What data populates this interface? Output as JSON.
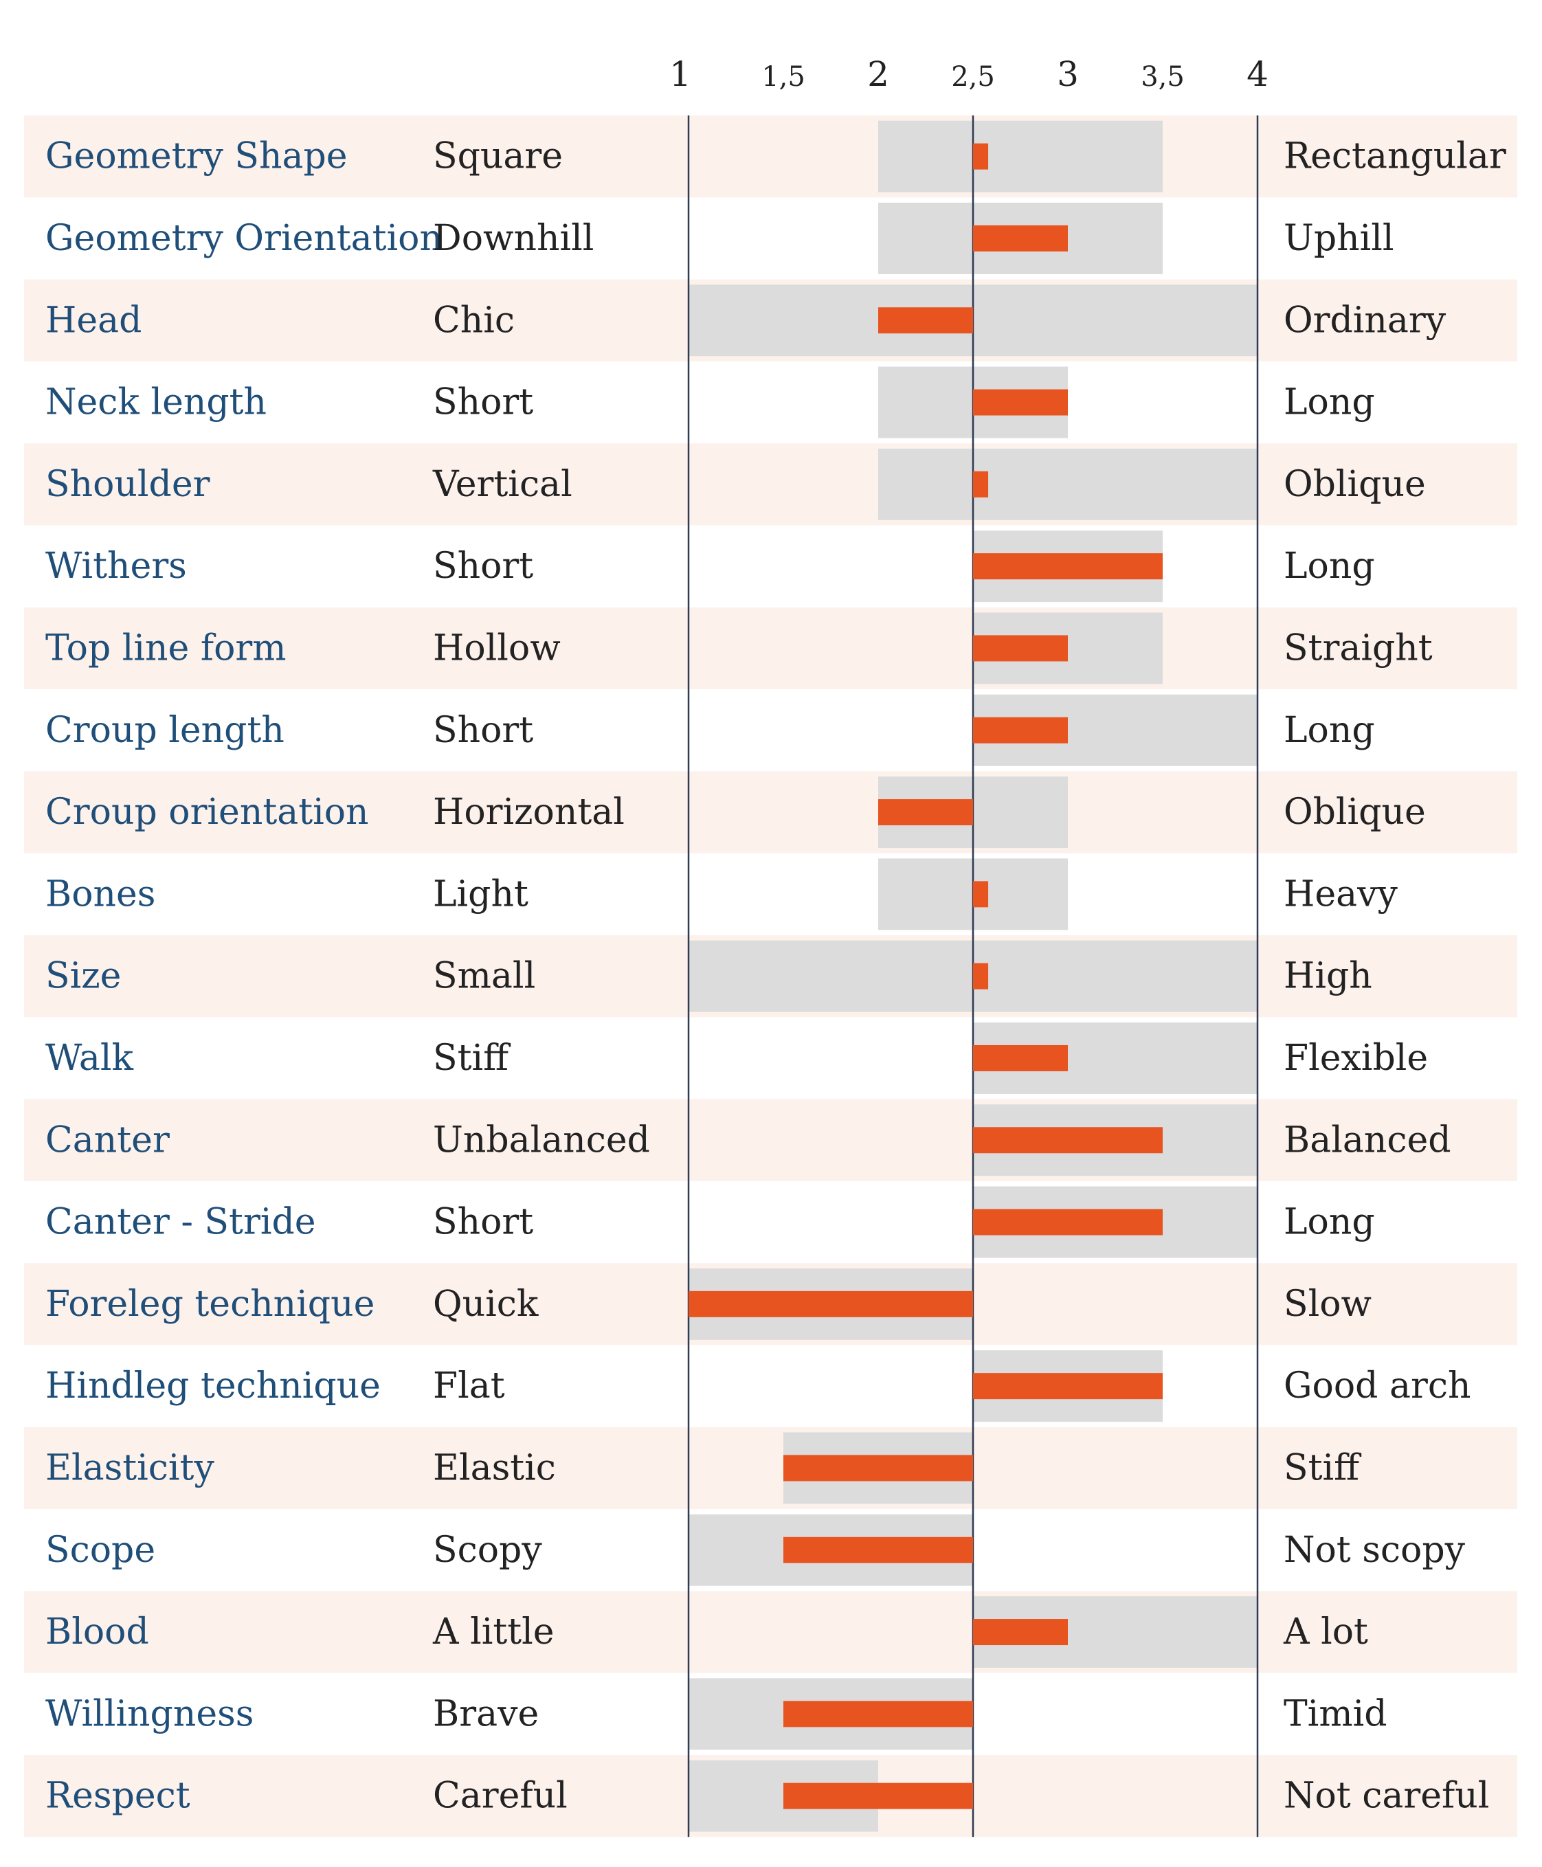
{
  "chart_data": {
    "type": "bar",
    "subtype": "diverging-range-profile",
    "baseline": 2.5,
    "xlim": [
      1,
      4
    ],
    "ticks": [
      {
        "value": 1,
        "label": "1"
      },
      {
        "value": 1.5,
        "label": "1,5"
      },
      {
        "value": 2,
        "label": "2"
      },
      {
        "value": 2.5,
        "label": "2,5"
      },
      {
        "value": 3,
        "label": "3"
      },
      {
        "value": 3.5,
        "label": "3,5"
      },
      {
        "value": 4,
        "label": "4"
      }
    ],
    "rows": [
      {
        "trait": "Geometry Shape",
        "low": "Square",
        "high": "Rectangular",
        "value": 2.58,
        "range": [
          2,
          3.5
        ]
      },
      {
        "trait": "Geometry Orientation",
        "low": "Downhill",
        "high": "Uphill",
        "value": 3,
        "range": [
          2,
          3.5
        ]
      },
      {
        "trait": "Head",
        "low": "Chic",
        "high": "Ordinary",
        "value": 2,
        "range": [
          1,
          4
        ]
      },
      {
        "trait": "Neck length",
        "low": "Short",
        "high": "Long",
        "value": 3,
        "range": [
          2,
          3
        ]
      },
      {
        "trait": "Shoulder",
        "low": "Vertical",
        "high": "Oblique",
        "value": 2.58,
        "range": [
          2,
          4
        ]
      },
      {
        "trait": "Withers",
        "low": "Short",
        "high": "Long",
        "value": 3.5,
        "range": [
          2.5,
          3.5
        ]
      },
      {
        "trait": "Top line form",
        "low": "Hollow",
        "high": "Straight",
        "value": 3,
        "range": [
          2.5,
          3.5
        ]
      },
      {
        "trait": "Croup length",
        "low": "Short",
        "high": "Long",
        "value": 3,
        "range": [
          2.5,
          4
        ]
      },
      {
        "trait": "Croup orientation",
        "low": "Horizontal",
        "high": "Oblique",
        "value": 2,
        "range": [
          2,
          3
        ]
      },
      {
        "trait": "Bones",
        "low": "Light",
        "high": "Heavy",
        "value": 2.58,
        "range": [
          2,
          3
        ]
      },
      {
        "trait": "Size",
        "low": "Small",
        "high": "High",
        "value": 2.58,
        "range": [
          1,
          4
        ]
      },
      {
        "trait": "Walk",
        "low": "Stiff",
        "high": "Flexible",
        "value": 3,
        "range": [
          2.5,
          4
        ]
      },
      {
        "trait": "Canter",
        "low": "Unbalanced",
        "high": "Balanced",
        "value": 3.5,
        "range": [
          2.5,
          4
        ]
      },
      {
        "trait": "Canter - Stride",
        "low": "Short",
        "high": "Long",
        "value": 3.5,
        "range": [
          2.5,
          4
        ]
      },
      {
        "trait": "Foreleg technique",
        "low": "Quick",
        "high": "Slow",
        "value": 1,
        "range": [
          1,
          2.5
        ]
      },
      {
        "trait": "Hindleg technique",
        "low": "Flat",
        "high": "Good arch",
        "value": 3.5,
        "range": [
          2.5,
          3.5
        ]
      },
      {
        "trait": "Elasticity",
        "low": "Elastic",
        "high": "Stiff",
        "value": 1.5,
        "range": [
          1.5,
          2.5
        ]
      },
      {
        "trait": "Scope",
        "low": "Scopy",
        "high": "Not scopy",
        "value": 1.5,
        "range": [
          1,
          2.5
        ]
      },
      {
        "trait": "Blood",
        "low": "A little",
        "high": "A lot",
        "value": 3,
        "range": [
          2.5,
          4
        ]
      },
      {
        "trait": "Willingness",
        "low": "Brave",
        "high": "Timid",
        "value": 1.5,
        "range": [
          1,
          2.5
        ]
      },
      {
        "trait": "Respect",
        "low": "Careful",
        "high": "Not careful",
        "value": 1.5,
        "range": [
          1,
          2
        ]
      }
    ]
  },
  "colors": {
    "row_stripe": "#fdf1ec",
    "range_fill": "#dcdcdc",
    "value_bar": "#e85420",
    "axis_line": "#2f3b52",
    "trait_text": "#1f4e79",
    "pole_text": "#222222",
    "tick_text": "#222222"
  }
}
